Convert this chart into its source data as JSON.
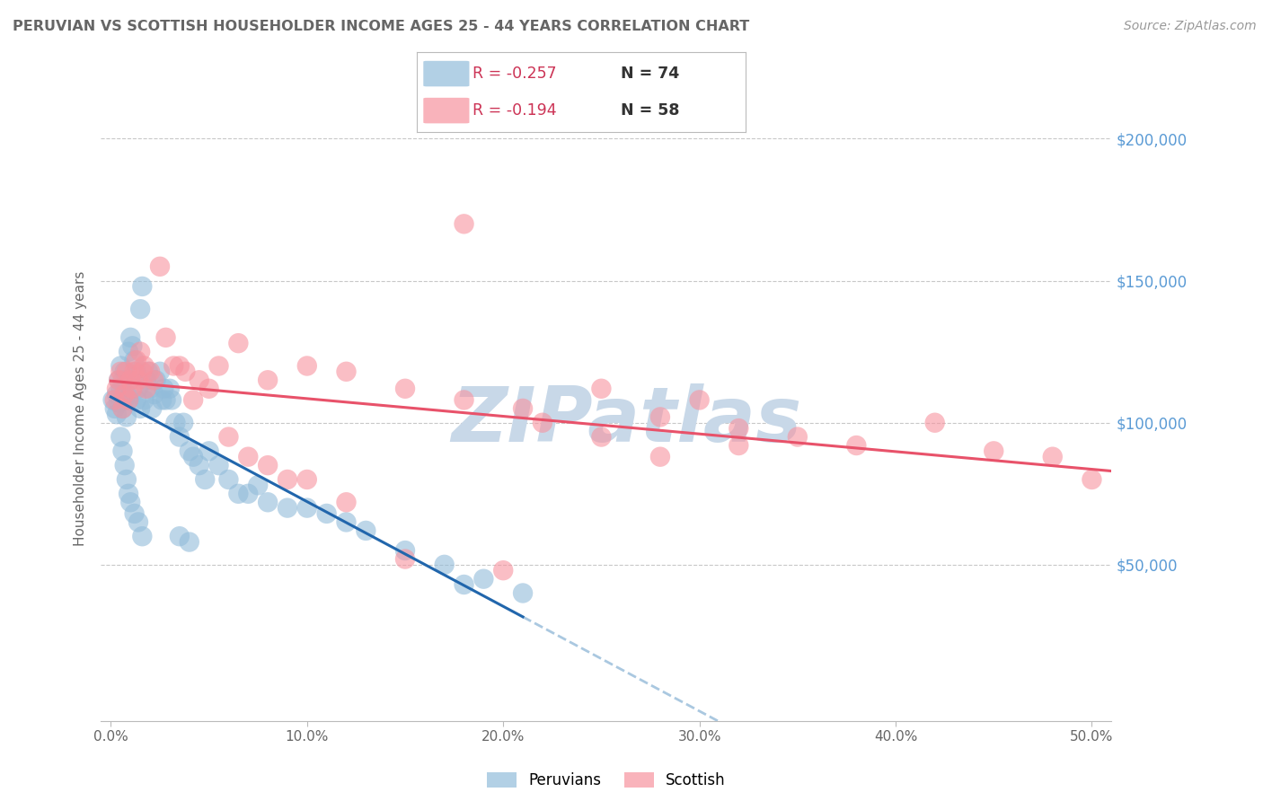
{
  "title": "PERUVIAN VS SCOTTISH HOUSEHOLDER INCOME AGES 25 - 44 YEARS CORRELATION CHART",
  "source": "Source: ZipAtlas.com",
  "ylabel": "Householder Income Ages 25 - 44 years",
  "xlabel_ticks": [
    "0.0%",
    "10.0%",
    "20.0%",
    "30.0%",
    "40.0%",
    "50.0%"
  ],
  "xlabel_vals": [
    0.0,
    0.1,
    0.2,
    0.3,
    0.4,
    0.5
  ],
  "yticks": [
    50000,
    100000,
    150000,
    200000
  ],
  "ytick_labels": [
    "$50,000",
    "$100,000",
    "$150,000",
    "$200,000"
  ],
  "ylim": [
    -5000,
    215000
  ],
  "xlim": [
    -0.005,
    0.51
  ],
  "legend_r1": "-0.257",
  "legend_n1": "74",
  "legend_r2": "-0.194",
  "legend_n2": "58",
  "peruvian_color": "#92bcda",
  "scottish_color": "#f7939f",
  "peruvian_line_color": "#2166ac",
  "scottish_line_color": "#e8526a",
  "dashed_line_color": "#aac8e0",
  "background_color": "#ffffff",
  "grid_color": "#c8c8c8",
  "title_color": "#666666",
  "axis_label_color": "#666666",
  "ytick_label_color": "#5b9bd5",
  "watermark_color": "#c8d8e8",
  "source_color": "#999999",
  "peruvian_x": [
    0.001,
    0.002,
    0.003,
    0.003,
    0.004,
    0.004,
    0.005,
    0.005,
    0.006,
    0.006,
    0.007,
    0.007,
    0.008,
    0.008,
    0.009,
    0.009,
    0.01,
    0.01,
    0.011,
    0.012,
    0.013,
    0.013,
    0.014,
    0.015,
    0.015,
    0.016,
    0.017,
    0.018,
    0.019,
    0.02,
    0.021,
    0.022,
    0.023,
    0.025,
    0.026,
    0.027,
    0.028,
    0.03,
    0.031,
    0.033,
    0.035,
    0.037,
    0.04,
    0.042,
    0.045,
    0.048,
    0.05,
    0.055,
    0.06,
    0.065,
    0.07,
    0.075,
    0.08,
    0.09,
    0.1,
    0.11,
    0.12,
    0.13,
    0.15,
    0.17,
    0.19,
    0.21,
    0.035,
    0.04,
    0.005,
    0.006,
    0.007,
    0.008,
    0.009,
    0.01,
    0.012,
    0.014,
    0.016,
    0.18
  ],
  "peruvian_y": [
    108000,
    105000,
    103000,
    110000,
    115000,
    107000,
    120000,
    112000,
    115000,
    105000,
    118000,
    108000,
    110000,
    102000,
    125000,
    108000,
    130000,
    115000,
    127000,
    122000,
    118000,
    108000,
    112000,
    140000,
    105000,
    148000,
    108000,
    115000,
    118000,
    112000,
    105000,
    110000,
    115000,
    118000,
    108000,
    112000,
    108000,
    112000,
    108000,
    100000,
    95000,
    100000,
    90000,
    88000,
    85000,
    80000,
    90000,
    85000,
    80000,
    75000,
    75000,
    78000,
    72000,
    70000,
    70000,
    68000,
    65000,
    62000,
    55000,
    50000,
    45000,
    40000,
    60000,
    58000,
    95000,
    90000,
    85000,
    80000,
    75000,
    72000,
    68000,
    65000,
    60000,
    43000
  ],
  "scottish_x": [
    0.002,
    0.003,
    0.004,
    0.005,
    0.006,
    0.007,
    0.008,
    0.009,
    0.01,
    0.011,
    0.012,
    0.013,
    0.014,
    0.015,
    0.016,
    0.017,
    0.018,
    0.02,
    0.022,
    0.025,
    0.028,
    0.032,
    0.038,
    0.045,
    0.055,
    0.065,
    0.08,
    0.1,
    0.12,
    0.15,
    0.18,
    0.21,
    0.25,
    0.28,
    0.3,
    0.32,
    0.35,
    0.38,
    0.42,
    0.45,
    0.48,
    0.5,
    0.22,
    0.25,
    0.28,
    0.18,
    0.32,
    0.035,
    0.042,
    0.05,
    0.06,
    0.07,
    0.08,
    0.09,
    0.1,
    0.12,
    0.15,
    0.2
  ],
  "scottish_y": [
    108000,
    112000,
    115000,
    118000,
    105000,
    110000,
    118000,
    108000,
    115000,
    112000,
    118000,
    122000,
    115000,
    125000,
    118000,
    120000,
    112000,
    118000,
    115000,
    155000,
    130000,
    120000,
    118000,
    115000,
    120000,
    128000,
    115000,
    120000,
    118000,
    112000,
    108000,
    105000,
    112000,
    102000,
    108000,
    98000,
    95000,
    92000,
    100000,
    90000,
    88000,
    80000,
    100000,
    95000,
    88000,
    170000,
    92000,
    120000,
    108000,
    112000,
    95000,
    88000,
    85000,
    80000,
    80000,
    72000,
    52000,
    48000
  ]
}
